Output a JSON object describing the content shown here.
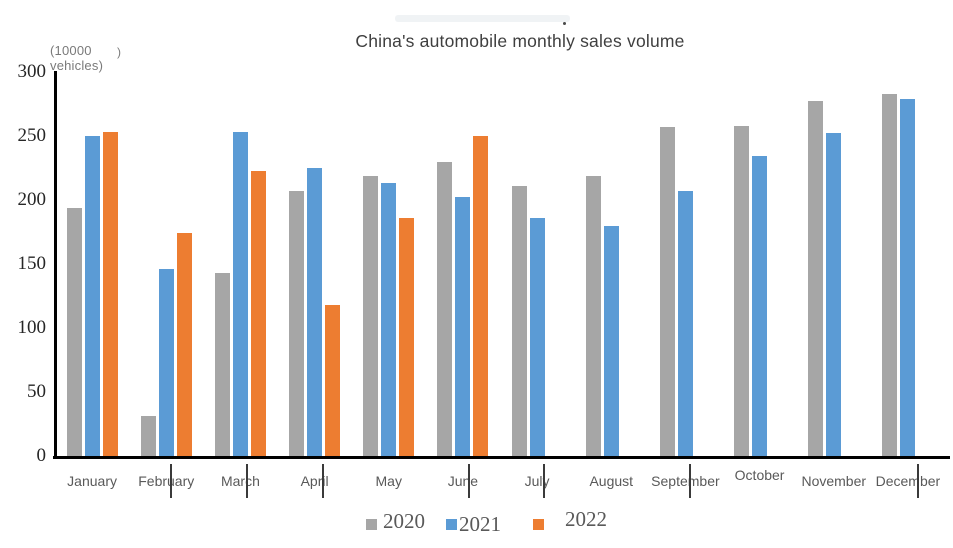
{
  "chart_data": {
    "type": "bar",
    "title": "China's automobile monthly sales volume",
    "unit_label_line1": "(10000",
    "unit_label_line2": "vehicles)",
    "unit_label_stray_paren": ")",
    "categories": [
      "January",
      "February",
      "March",
      "April",
      "May",
      "June",
      "July",
      "August",
      "September",
      "October",
      "November",
      "December"
    ],
    "series": [
      {
        "name": "2020",
        "color": "#A6A6A6",
        "values": [
          194,
          31,
          143,
          207,
          219,
          230,
          211,
          219,
          257,
          258,
          277,
          283
        ]
      },
      {
        "name": "2021",
        "color": "#5B9BD5",
        "values": [
          250,
          146,
          253,
          225,
          213,
          202,
          186,
          180,
          207,
          234,
          252,
          279
        ]
      },
      {
        "name": "2022",
        "color": "#ED7D31",
        "values": [
          253,
          174,
          223,
          118,
          186,
          250,
          null,
          null,
          null,
          null,
          null,
          null
        ]
      }
    ],
    "y_ticks": [
      0,
      50,
      100,
      150,
      200,
      250,
      300
    ],
    "ylim": [
      0,
      300
    ],
    "xlabel": "",
    "ylabel": "(10000 vehicles)",
    "grid": false,
    "legend_position": "bottom",
    "layout": {
      "raised_category": "October",
      "stray_tick_marks_x": [
        170,
        246,
        322,
        468,
        543,
        689,
        917
      ]
    }
  }
}
